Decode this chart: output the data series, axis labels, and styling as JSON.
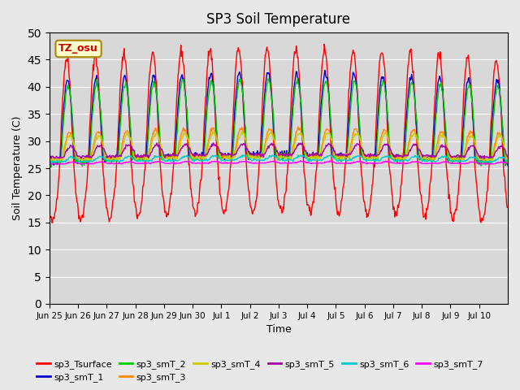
{
  "title": "SP3 Soil Temperature",
  "ylabel": "Soil Temperature (C)",
  "xlabel": "Time",
  "tz_label": "TZ_osu",
  "background_color": "#e8e8e8",
  "plot_bg_color": "#d8d8d8",
  "ylim": [
    0,
    50
  ],
  "yticks": [
    0,
    5,
    10,
    15,
    20,
    25,
    30,
    35,
    40,
    45,
    50
  ],
  "x_labels": [
    "Jun 25",
    "Jun 26",
    "Jun 27",
    "Jun 28",
    "Jun 29",
    "Jun 30",
    "Jul 1",
    "Jul 2",
    "Jul 3",
    "Jul 4",
    "Jul 5",
    "Jul 6",
    "Jul 7",
    "Jul 8",
    "Jul 9",
    "Jul 10"
  ],
  "x_tick_positions": [
    0,
    1,
    2,
    3,
    4,
    5,
    6,
    7,
    8,
    9,
    10,
    11,
    12,
    13,
    14,
    15
  ],
  "n_days": 16,
  "series_colors": {
    "sp3_Tsurface": "#ff0000",
    "sp3_smT_1": "#0000cc",
    "sp3_smT_2": "#00cc00",
    "sp3_smT_3": "#ff8800",
    "sp3_smT_4": "#cccc00",
    "sp3_smT_5": "#aa00aa",
    "sp3_smT_6": "#00cccc",
    "sp3_smT_7": "#ff00ff"
  },
  "legend_order": [
    "sp3_Tsurface",
    "sp3_smT_1",
    "sp3_smT_2",
    "sp3_smT_3",
    "sp3_smT_4",
    "sp3_smT_5",
    "sp3_smT_6",
    "sp3_smT_7"
  ]
}
